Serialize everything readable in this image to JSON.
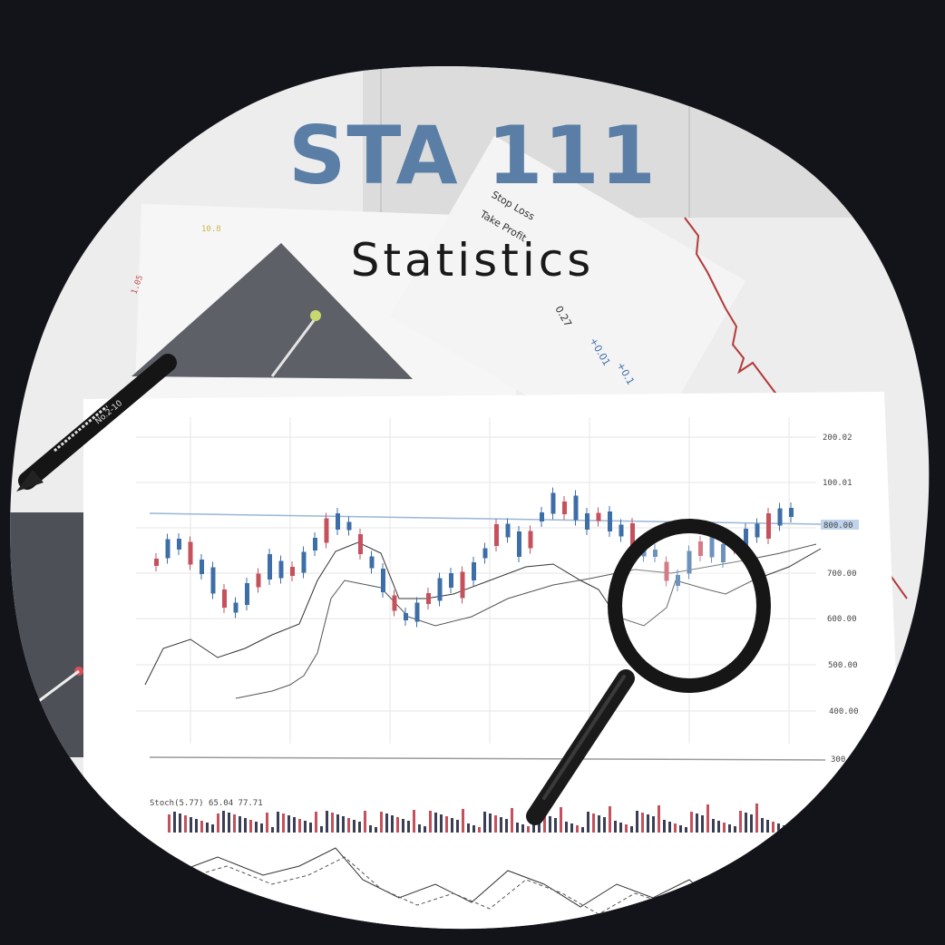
{
  "title": "STA 111",
  "subtitle": "Statistics",
  "photo": {
    "axis_ticks": [
      "200.02",
      "100.01",
      "800.00",
      "700.00",
      "600.00",
      "500.00",
      "400.00",
      "300"
    ],
    "indicator_label": "Stoch(5.77) 65.04 77.71",
    "paper_labels": [
      "Stop Loss",
      "Take Profit",
      "0.27",
      "+0.01",
      "+0.1",
      "10.8",
      "1.05"
    ],
    "pencil_text": "No.2-10"
  },
  "colors": {
    "background": "#13131a",
    "title": "#5a7ea5",
    "subtitle": "#1a1a1a",
    "candle_up": "#3d6ea8",
    "candle_down": "#c4515c"
  }
}
